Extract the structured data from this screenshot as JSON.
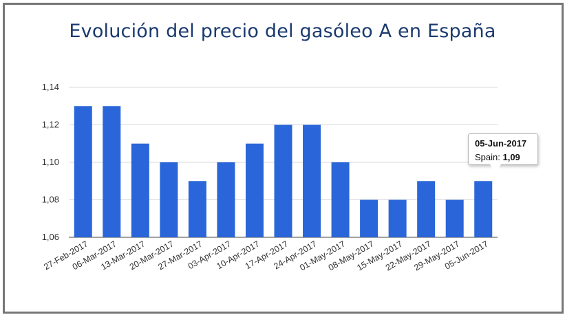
{
  "chart_data": {
    "type": "bar",
    "title": "Evolución del precio del gasóleo A en España",
    "xlabel": "",
    "ylabel": "",
    "ylim": [
      1.06,
      1.14
    ],
    "yticks": [
      "1,06",
      "1,08",
      "1,10",
      "1,12",
      "1,14"
    ],
    "ytick_values": [
      1.06,
      1.08,
      1.1,
      1.12,
      1.14
    ],
    "categories": [
      "27-Feb-2017",
      "06-Mar-2017",
      "13-Mar-2017",
      "20-Mar-2017",
      "27-Mar-2017",
      "03-Apr-2017",
      "10-Apr-2017",
      "17-Apr-2017",
      "24-Apr-2017",
      "01-May-2017",
      "08-May-2017",
      "15-May-2017",
      "22-May-2017",
      "29-May-2017",
      "05-Jun-2017"
    ],
    "series": [
      {
        "name": "Spain",
        "color": "#2a66d9",
        "values": [
          1.13,
          1.13,
          1.11,
          1.1,
          1.09,
          1.1,
          1.11,
          1.12,
          1.12,
          1.1,
          1.08,
          1.08,
          1.09,
          1.08,
          1.09
        ]
      }
    ],
    "grid": true,
    "tooltip": {
      "date": "05-Jun-2017",
      "series_label": "Spain: ",
      "value_text": "1,09"
    }
  }
}
